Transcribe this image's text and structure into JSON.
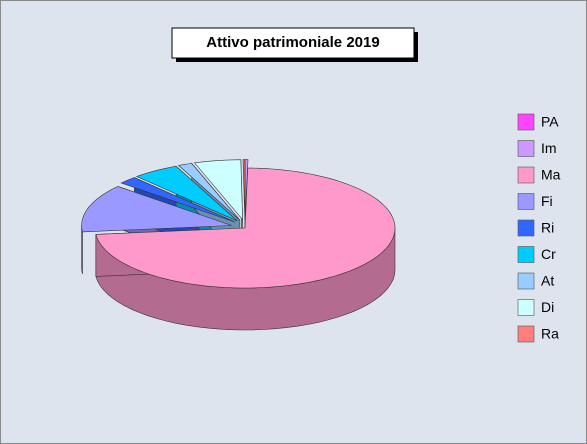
{
  "chart_data": {
    "type": "pie3d",
    "title": "Attivo patrimoniale 2019",
    "categories": [
      "PA",
      "Im",
      "Ma",
      "Fi",
      "Ri",
      "Cr",
      "At",
      "Di",
      "Ra"
    ],
    "values": [
      0,
      0.3,
      73,
      13,
      2,
      5,
      1.5,
      5,
      0.2
    ],
    "colors": [
      "#ff44ff",
      "#cc99ff",
      "#ff99cc",
      "#9999ff",
      "#3366ff",
      "#00ccff",
      "#99ccff",
      "#ccffff",
      "#ff7f7f"
    ],
    "legend": "right"
  }
}
